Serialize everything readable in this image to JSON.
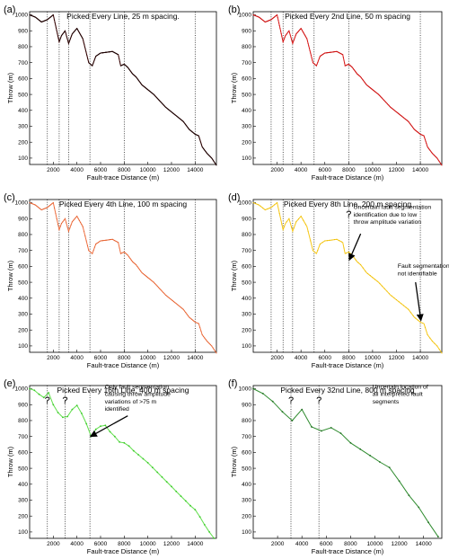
{
  "chart_data": [
    {
      "type": "line",
      "panel_label": "(a)",
      "title": "Picked Every Line, 25 m spacing.",
      "xlabel": "Fault-trace Distance (m)",
      "ylabel": "Throw (m)",
      "xlim": [
        0,
        15800
      ],
      "ylim": [
        60,
        1020
      ],
      "xticks": [
        2000,
        4000,
        6000,
        8000,
        10000,
        12000,
        14000
      ],
      "yticks": [
        100,
        200,
        300,
        400,
        500,
        600,
        700,
        800,
        900,
        1000
      ],
      "color": "#5a0a0a",
      "marker_color": "#1a0000",
      "step": 25,
      "fault_lines": [
        1500,
        2500,
        3300,
        5100,
        8000,
        14000
      ],
      "annotations": [],
      "x": [
        0,
        500,
        1000,
        1500,
        2000,
        2500,
        2700,
        3000,
        3300,
        3600,
        4000,
        4500,
        5000,
        5300,
        5600,
        6000,
        6500,
        7000,
        7500,
        7700,
        8000,
        8300,
        8700,
        9000,
        9500,
        10000,
        10500,
        11000,
        11500,
        12000,
        12500,
        13000,
        13500,
        14000,
        14300,
        14600,
        15000,
        15400,
        15800
      ],
      "y": [
        1000,
        985,
        955,
        970,
        1000,
        830,
        870,
        900,
        820,
        880,
        915,
        850,
        700,
        680,
        740,
        760,
        765,
        770,
        750,
        680,
        690,
        670,
        630,
        610,
        560,
        530,
        500,
        460,
        420,
        390,
        360,
        330,
        280,
        250,
        240,
        170,
        130,
        100,
        55
      ]
    },
    {
      "type": "line",
      "panel_label": "(b)",
      "title": "Picked Every 2nd Line, 50 m spacing",
      "xlabel": "Fault-trace Distance (m)",
      "ylabel": "Throw (m)",
      "xlim": [
        0,
        15800
      ],
      "ylim": [
        60,
        1020
      ],
      "xticks": [
        2000,
        4000,
        6000,
        8000,
        10000,
        12000,
        14000
      ],
      "yticks": [
        100,
        200,
        300,
        400,
        500,
        600,
        700,
        800,
        900,
        1000
      ],
      "color": "#dd1c1c",
      "marker_color": "#cc1010",
      "step": 50,
      "fault_lines": [
        1500,
        2500,
        3300,
        5100,
        8000,
        14000
      ],
      "annotations": [],
      "x": [
        0,
        500,
        1000,
        1500,
        2000,
        2500,
        2700,
        3000,
        3300,
        3600,
        4000,
        4500,
        5000,
        5300,
        5600,
        6000,
        6500,
        7000,
        7500,
        7700,
        8000,
        8300,
        8700,
        9000,
        9500,
        10000,
        10500,
        11000,
        11500,
        12000,
        12500,
        13000,
        13500,
        14000,
        14300,
        14600,
        15000,
        15400,
        15800
      ],
      "y": [
        1000,
        985,
        955,
        970,
        1000,
        830,
        870,
        900,
        820,
        880,
        915,
        850,
        700,
        680,
        740,
        760,
        765,
        770,
        750,
        680,
        690,
        670,
        630,
        610,
        560,
        530,
        500,
        460,
        420,
        390,
        360,
        330,
        280,
        250,
        240,
        170,
        130,
        100,
        55
      ]
    },
    {
      "type": "line",
      "panel_label": "(c)",
      "title": "Picked Every 4th Line, 100 m spacing",
      "xlabel": "Fault-trace Distance (m)",
      "ylabel": "Throw (m)",
      "xlim": [
        0,
        15800
      ],
      "ylim": [
        60,
        1020
      ],
      "xticks": [
        2000,
        4000,
        6000,
        8000,
        10000,
        12000,
        14000
      ],
      "yticks": [
        100,
        200,
        300,
        400,
        500,
        600,
        700,
        800,
        900,
        1000
      ],
      "color": "#ef7040",
      "marker_color": "#e05a28",
      "step": 100,
      "fault_lines": [
        1500,
        2500,
        3300,
        5100,
        8000,
        14000
      ],
      "annotations": [],
      "x": [
        0,
        500,
        1000,
        1500,
        2000,
        2500,
        2700,
        3000,
        3300,
        3600,
        4000,
        4500,
        5000,
        5300,
        5600,
        6000,
        6500,
        7000,
        7500,
        7700,
        8000,
        8300,
        8700,
        9000,
        9500,
        10000,
        10500,
        11000,
        11500,
        12000,
        12500,
        13000,
        13500,
        14000,
        14300,
        14600,
        15000,
        15400,
        15800
      ],
      "y": [
        1000,
        985,
        955,
        970,
        1000,
        830,
        870,
        900,
        820,
        880,
        915,
        850,
        700,
        680,
        740,
        760,
        765,
        770,
        750,
        680,
        690,
        670,
        630,
        610,
        560,
        530,
        500,
        460,
        420,
        390,
        360,
        330,
        280,
        250,
        240,
        170,
        130,
        100,
        55
      ]
    },
    {
      "type": "line",
      "panel_label": "(d)",
      "title": "Picked Every 8th Line, 200 m spacing",
      "xlabel": "Fault-trace Distance (m)",
      "ylabel": "Throw (m)",
      "xlim": [
        0,
        15800
      ],
      "ylim": [
        60,
        1020
      ],
      "xticks": [
        2000,
        4000,
        6000,
        8000,
        10000,
        12000,
        14000
      ],
      "yticks": [
        100,
        200,
        300,
        400,
        500,
        600,
        700,
        800,
        900,
        1000
      ],
      "color": "#f7c816",
      "marker_color": "#e8b800",
      "step": 200,
      "fault_lines": [
        1500,
        2500,
        3300,
        5100,
        8000,
        14000
      ],
      "question_marks": [
        8000
      ],
      "annotations": [
        {
          "lines": [
            "Uncertain fault segmentation",
            "identification due to low",
            "throw amplitude variation"
          ],
          "text_x": 8400,
          "text_y": 960,
          "arrow_from": [
            9000,
            805
          ],
          "arrow_to": [
            8050,
            640
          ]
        },
        {
          "lines": [
            "Fault segmentation",
            "not identifiable"
          ],
          "text_x": 12100,
          "text_y": 590,
          "arrow_from": [
            13600,
            500
          ],
          "arrow_to": [
            14050,
            260
          ]
        }
      ],
      "x": [
        0,
        500,
        1000,
        1500,
        2000,
        2500,
        2700,
        3000,
        3300,
        3600,
        4000,
        4500,
        5000,
        5300,
        5600,
        6000,
        6500,
        7000,
        7500,
        7700,
        8000,
        8300,
        8700,
        9000,
        9500,
        10000,
        10500,
        11000,
        11500,
        12000,
        12500,
        13000,
        13500,
        14000,
        14300,
        14600,
        15000,
        15400,
        15800
      ],
      "y": [
        1000,
        985,
        955,
        970,
        1000,
        830,
        870,
        900,
        820,
        880,
        915,
        850,
        700,
        680,
        740,
        760,
        765,
        770,
        750,
        680,
        690,
        670,
        630,
        610,
        560,
        530,
        500,
        460,
        420,
        390,
        360,
        330,
        280,
        250,
        240,
        170,
        130,
        100,
        55
      ]
    },
    {
      "type": "line",
      "panel_label": "(e)",
      "title": "Picked Every 16th Line, 400 m spacing",
      "xlabel": "Fault-trace Distance (m)",
      "ylabel": "Throw (m)",
      "xlim": [
        0,
        15800
      ],
      "ylim": [
        60,
        1020
      ],
      "xticks": [
        2000,
        4000,
        6000,
        8000,
        10000,
        12000,
        14000
      ],
      "yticks": [
        100,
        200,
        300,
        400,
        500,
        600,
        700,
        800,
        900,
        1000
      ],
      "color": "#5fde4a",
      "marker_color": "#3cc82a",
      "step": 400,
      "fault_lines": [
        1500,
        3000,
        5100
      ],
      "question_marks": [
        1500,
        3000
      ],
      "annotations": [
        {
          "lines": [
            "Only fault segmentation",
            "causing throw amplitude",
            "variations of >75 m",
            "identified"
          ],
          "text_x": 6350,
          "text_y": 1000,
          "arrow_from": [
            8300,
            830
          ],
          "arrow_to": [
            5150,
            700
          ]
        }
      ],
      "x": [
        0,
        400,
        800,
        1200,
        1600,
        2000,
        2400,
        2800,
        3200,
        3600,
        4000,
        4400,
        4800,
        5200,
        5600,
        6000,
        6400,
        6800,
        7200,
        7600,
        8000,
        8400,
        8800,
        9200,
        9600,
        10000,
        10400,
        10800,
        11200,
        11600,
        12000,
        12400,
        12800,
        13200,
        13600,
        14000,
        14400,
        14800,
        15200,
        15600
      ],
      "y": [
        1000,
        990,
        965,
        945,
        975,
        900,
        850,
        820,
        825,
        870,
        895,
        845,
        780,
        700,
        745,
        765,
        770,
        730,
        700,
        665,
        660,
        640,
        610,
        585,
        560,
        535,
        505,
        475,
        445,
        415,
        385,
        355,
        325,
        295,
        265,
        240,
        195,
        145,
        100,
        60
      ]
    },
    {
      "type": "line",
      "panel_label": "(f)",
      "title": "Picked Every 32nd Line, 800 m spacing",
      "xlabel": "Fault-trace Distance (m)",
      "ylabel": "Throw (m)",
      "xlim": [
        0,
        15500
      ],
      "ylim": [
        60,
        1020
      ],
      "xticks": [
        2000,
        4000,
        6000,
        8000,
        10000,
        12000,
        14000
      ],
      "yticks": [
        100,
        200,
        300,
        400,
        500,
        600,
        700,
        800,
        900,
        1000
      ],
      "color": "#2e8b2e",
      "marker_color": "#1f6e1f",
      "step": 800,
      "fault_lines": [
        3100,
        5400
      ],
      "question_marks": [
        3100,
        5400
      ],
      "annotations": [
        {
          "lines": [
            "Uncertain location of",
            "all interpreted fault",
            "segments"
          ],
          "text_x": 9800,
          "text_y": 1000,
          "arrow_from": null,
          "arrow_to": null
        }
      ],
      "x": [
        0,
        800,
        1600,
        2400,
        3200,
        4000,
        4800,
        5600,
        6400,
        7200,
        8000,
        8800,
        9600,
        10400,
        11200,
        12000,
        12800,
        13600,
        14400,
        15200
      ],
      "y": [
        1000,
        970,
        920,
        855,
        800,
        870,
        760,
        735,
        755,
        720,
        660,
        620,
        580,
        540,
        505,
        420,
        330,
        255,
        160,
        70
      ]
    }
  ]
}
